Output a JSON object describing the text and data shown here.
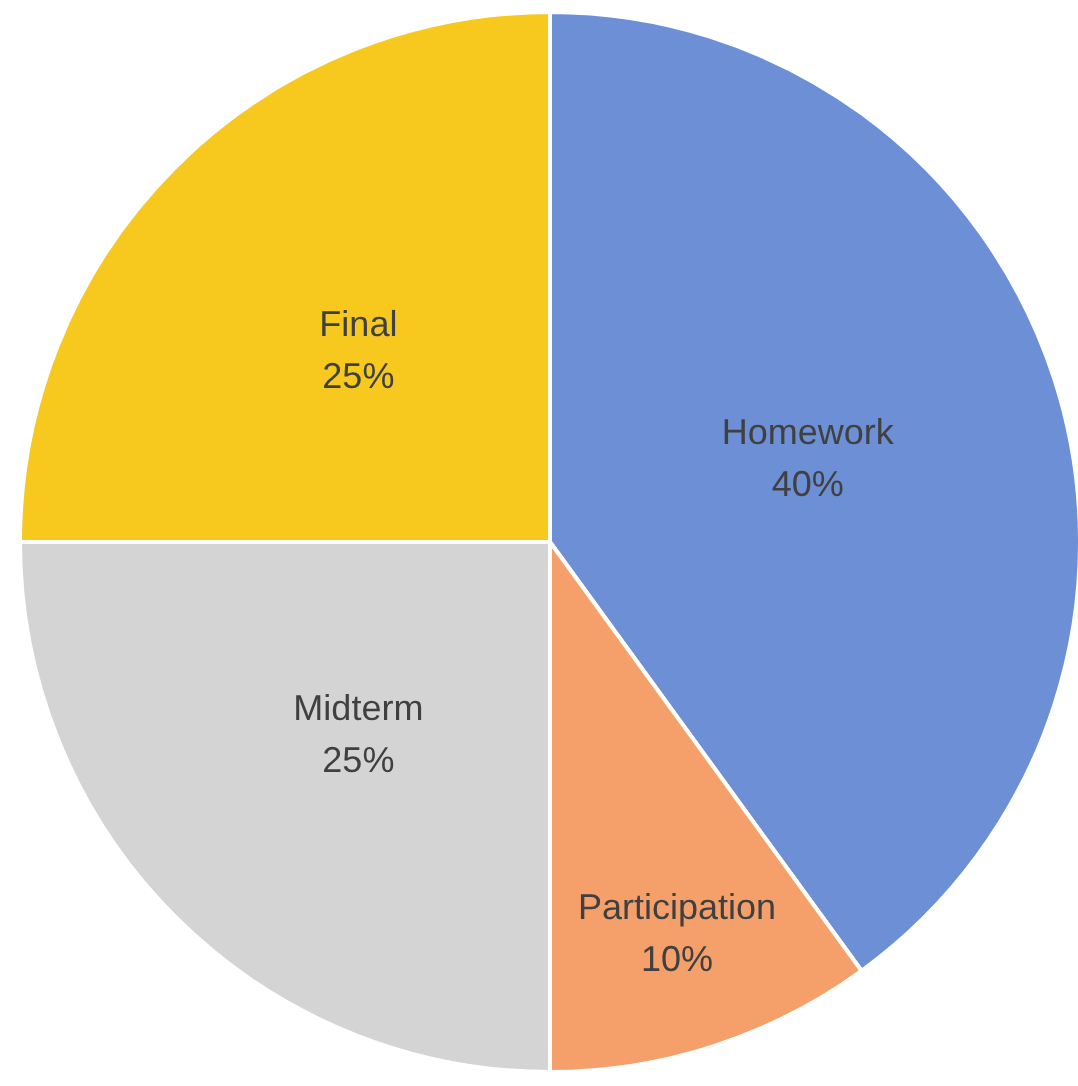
{
  "chart_data": {
    "type": "pie",
    "categories": [
      "Homework",
      "Participation",
      "Midterm",
      "Final"
    ],
    "values": [
      40,
      10,
      25,
      25
    ],
    "value_labels": [
      "40%",
      "10%",
      "25%",
      "25%"
    ],
    "colors": [
      "#6d8fd6",
      "#f5a06a",
      "#d4d4d4",
      "#f7c81e"
    ],
    "legend": false
  }
}
